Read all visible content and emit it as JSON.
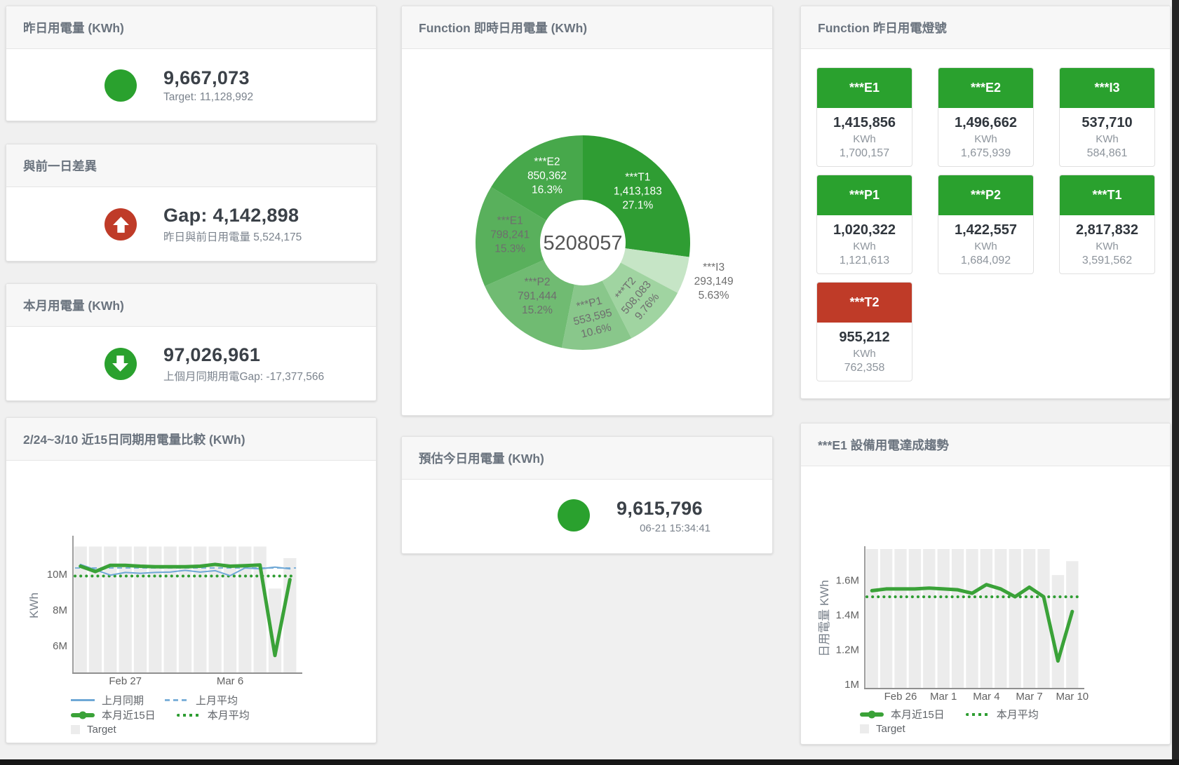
{
  "cards": {
    "yesterday": {
      "title": "昨日用電量 (KWh)",
      "value": "9,667,073",
      "sub": "Target: 11,128,992",
      "color": "#2aa12e",
      "icon": "circle"
    },
    "day_gap": {
      "title": "與前一日差異",
      "value": "Gap: 4,142,898",
      "sub": "昨日與前日用電量 5,524,175",
      "color": "#bf3b28",
      "icon": "arrow-up"
    },
    "month": {
      "title": "本月用電量 (KWh)",
      "value": "97,026,961",
      "sub": "上個月同期用電Gap: -17,377,566",
      "color": "#2aa12e",
      "icon": "arrow-down"
    },
    "estimate": {
      "title": "預估今日用電量 (KWh)",
      "value": "9,615,796",
      "sub": "06-21 15:34:41",
      "color": "#2aa12e",
      "icon": "circle"
    },
    "realtime_title": "Function 即時日用電量 (KWh)",
    "lights_title": "Function 昨日用電燈號",
    "compare_title": "2/24~3/10 近15日同期用電量比較 (KWh)",
    "trend_title": "***E1 設備用電達成趨勢"
  },
  "lights": {
    "unit": "KWh",
    "ok_color": "#2aa12e",
    "alert_color": "#bf3b28",
    "tiles": [
      {
        "name": "***E1",
        "value": "1,415,856",
        "target": "1,700,157",
        "status": "ok"
      },
      {
        "name": "***E2",
        "value": "1,496,662",
        "target": "1,675,939",
        "status": "ok"
      },
      {
        "name": "***I3",
        "value": "537,710",
        "target": "584,861",
        "status": "ok"
      },
      {
        "name": "***P1",
        "value": "1,020,322",
        "target": "1,121,613",
        "status": "ok"
      },
      {
        "name": "***P2",
        "value": "1,422,557",
        "target": "1,684,092",
        "status": "ok"
      },
      {
        "name": "***T1",
        "value": "2,817,832",
        "target": "3,591,562",
        "status": "ok"
      },
      {
        "name": "***T2",
        "value": "955,212",
        "target": "762,358",
        "status": "alert"
      }
    ]
  },
  "chart_data": [
    {
      "id": "realtime_donut",
      "type": "pie",
      "title": "Function 即時日用電量 (KWh)",
      "center_total": "5208057",
      "unit": "KWh",
      "slices": [
        {
          "name": "***T1",
          "value": 1413183,
          "pct": "27.1%",
          "color": "#2f9d33",
          "label": "inside",
          "label_color": "#ffffff"
        },
        {
          "name": "***I3",
          "value": 293149,
          "pct": "5.63%",
          "color": "#c6e5c6",
          "label": "outside",
          "label_color": "#6e6e6e",
          "label_r": 196
        },
        {
          "name": "***T2",
          "value": 508083,
          "pct": "9.76%",
          "color": "#a0d4a1",
          "label": "inside",
          "label_color": "#6e6e6e",
          "label_r": 114,
          "rotate": -50
        },
        {
          "name": "***P1",
          "value": 553595,
          "pct": "10.6%",
          "color": "#89c78b",
          "label": "inside",
          "label_color": "#6e6e6e",
          "label_r": 112,
          "rotate": -14
        },
        {
          "name": "***P2",
          "value": 791444,
          "pct": "15.2%",
          "color": "#70bb72",
          "label": "inside",
          "label_color": "#6e6e6e"
        },
        {
          "name": "***E1",
          "value": 798241,
          "pct": "15.3%",
          "color": "#59b05c",
          "label": "inside",
          "label_color": "#6e6e6e"
        },
        {
          "name": "***E2",
          "value": 850362,
          "pct": "16.3%",
          "color": "#47a84b",
          "label": "inside",
          "label_color": "#ffffff"
        }
      ]
    },
    {
      "id": "compare15",
      "type": "line",
      "title": "2/24~3/10 近15日同期用電量比較 (KWh)",
      "ylabel": "KWh",
      "unit": "M KWh",
      "n_points": 15,
      "ylim": [
        4.5,
        12
      ],
      "y_ticks": [
        {
          "v": 6,
          "label": "6M"
        },
        {
          "v": 8,
          "label": "8M"
        },
        {
          "v": 10,
          "label": "10M"
        }
      ],
      "x_ticks": [
        {
          "i": 3,
          "label": "Feb 27"
        },
        {
          "i": 10,
          "label": "Mar 6"
        }
      ],
      "series": [
        {
          "name": "Target",
          "type": "bar",
          "color": "#ececec",
          "values": [
            11.55,
            11.55,
            11.55,
            11.55,
            11.55,
            11.55,
            11.55,
            11.55,
            11.55,
            11.55,
            11.55,
            11.55,
            11.55,
            9.2,
            10.9
          ]
        },
        {
          "name": "上月同期",
          "type": "line",
          "color": "#6fa8d6",
          "width": 2,
          "values": [
            10.55,
            10.25,
            9.95,
            10.1,
            10.05,
            10.1,
            10.12,
            10.22,
            10.12,
            10.2,
            9.92,
            10.35,
            10.3,
            10.4,
            10.3
          ]
        },
        {
          "name": "上月平均",
          "type": "hline",
          "style": "dash",
          "color": "#7fb2da",
          "width": 2,
          "value": 10.35
        },
        {
          "name": "本月平均",
          "type": "hline",
          "style": "dots",
          "color": "#2e9d32",
          "width": 4,
          "value": 9.9
        },
        {
          "name": "本月近15日",
          "type": "line",
          "color": "#3aa238",
          "width": 5,
          "values": [
            10.45,
            10.15,
            10.5,
            10.5,
            10.45,
            10.42,
            10.42,
            10.42,
            10.45,
            10.55,
            10.45,
            10.48,
            10.52,
            5.45,
            9.7
          ]
        }
      ],
      "legend": [
        [
          {
            "label": "上月同期",
            "swatch": "line",
            "color": "#6fa8d6"
          },
          {
            "label": "上月平均",
            "swatch": "dash",
            "color": "#7fb2da"
          }
        ],
        [
          {
            "label": "本月近15日",
            "swatch": "thick",
            "color": "#3aa238"
          },
          {
            "label": "本月平均",
            "swatch": "dots",
            "color": "#2e9d32"
          }
        ],
        [
          {
            "label": "Target",
            "swatch": "box",
            "color": "#ececec"
          }
        ]
      ]
    },
    {
      "id": "e1_trend",
      "type": "line",
      "title": "***E1 設備用電達成趨勢",
      "ylabel": "日用電量 KWh",
      "unit": "M KWh",
      "n_points": 15,
      "ylim": [
        0.98,
        1.78
      ],
      "y_ticks": [
        {
          "v": 1,
          "label": "1M"
        },
        {
          "v": 1.2,
          "label": "1.2M"
        },
        {
          "v": 1.4,
          "label": "1.4M"
        },
        {
          "v": 1.6,
          "label": "1.6M"
        }
      ],
      "x_ticks": [
        {
          "i": 2,
          "label": "Feb 26"
        },
        {
          "i": 5,
          "label": "Mar 1"
        },
        {
          "i": 8,
          "label": "Mar 4"
        },
        {
          "i": 11,
          "label": "Mar 7"
        },
        {
          "i": 14,
          "label": "Mar 10"
        }
      ],
      "series": [
        {
          "name": "Target",
          "type": "bar",
          "color": "#ececec",
          "values": [
            1.78,
            1.78,
            1.78,
            1.78,
            1.78,
            1.78,
            1.78,
            1.78,
            1.78,
            1.78,
            1.78,
            1.78,
            1.78,
            1.63,
            1.71
          ]
        },
        {
          "name": "本月平均",
          "type": "hline",
          "style": "dots",
          "color": "#2e9d32",
          "width": 4,
          "value": 1.505
        },
        {
          "name": "本月近15日",
          "type": "line",
          "color": "#3aa238",
          "width": 5,
          "values": [
            1.54,
            1.55,
            1.55,
            1.55,
            1.555,
            1.55,
            1.545,
            1.525,
            1.575,
            1.55,
            1.505,
            1.56,
            1.505,
            1.135,
            1.42
          ]
        }
      ],
      "legend": [
        [
          {
            "label": "本月近15日",
            "swatch": "thick",
            "color": "#3aa238"
          },
          {
            "label": "本月平均",
            "swatch": "dots",
            "color": "#2e9d32"
          }
        ],
        [
          {
            "label": "Target",
            "swatch": "box",
            "color": "#ececec"
          }
        ]
      ]
    }
  ]
}
